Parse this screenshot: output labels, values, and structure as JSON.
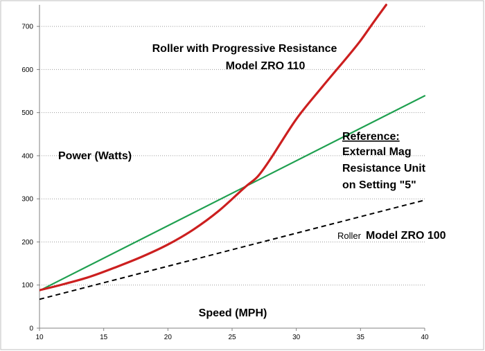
{
  "chart_data": {
    "type": "line",
    "title": "Roller with Progressive Resistance",
    "subtitle": "Model ZRO 110",
    "xlabel": "Speed (MPH)",
    "ylabel": "Power (Watts)",
    "xlim": [
      10,
      40
    ],
    "ylim": [
      0,
      750
    ],
    "x_ticks": [
      10,
      15,
      20,
      25,
      30,
      35,
      40
    ],
    "y_ticks": [
      0,
      100,
      200,
      300,
      400,
      500,
      600,
      700
    ],
    "grid": "horizontal dotted",
    "series": [
      {
        "name": "Roller Model ZRO 110 (progressive)",
        "color": "#cc1f1f",
        "style": "solid",
        "x": [
          10,
          12,
          14,
          16,
          18,
          20,
          22,
          24,
          26,
          27,
          28,
          30,
          32,
          34,
          35,
          36,
          37
        ],
        "y": [
          88,
          103,
          120,
          142,
          166,
          194,
          229,
          273,
          327,
          352,
          393,
          485,
          559,
          630,
          667,
          709,
          750
        ]
      },
      {
        "name": "Reference: External Mag Resistance Unit on Setting \"5\"",
        "color": "#1fa050",
        "style": "solid",
        "x": [
          10,
          40
        ],
        "y": [
          87,
          539
        ]
      },
      {
        "name": "Roller Model ZRO 100",
        "color": "#000000",
        "style": "dashed",
        "x": [
          10,
          40
        ],
        "y": [
          67,
          297
        ]
      }
    ],
    "annotations": {
      "reference_lines": [
        "Reference:",
        "External Mag",
        "Resistance Unit",
        "on Setting \"5\""
      ],
      "zro100_prefix": "Roller",
      "zro100_model": "Model ZRO 100"
    }
  }
}
